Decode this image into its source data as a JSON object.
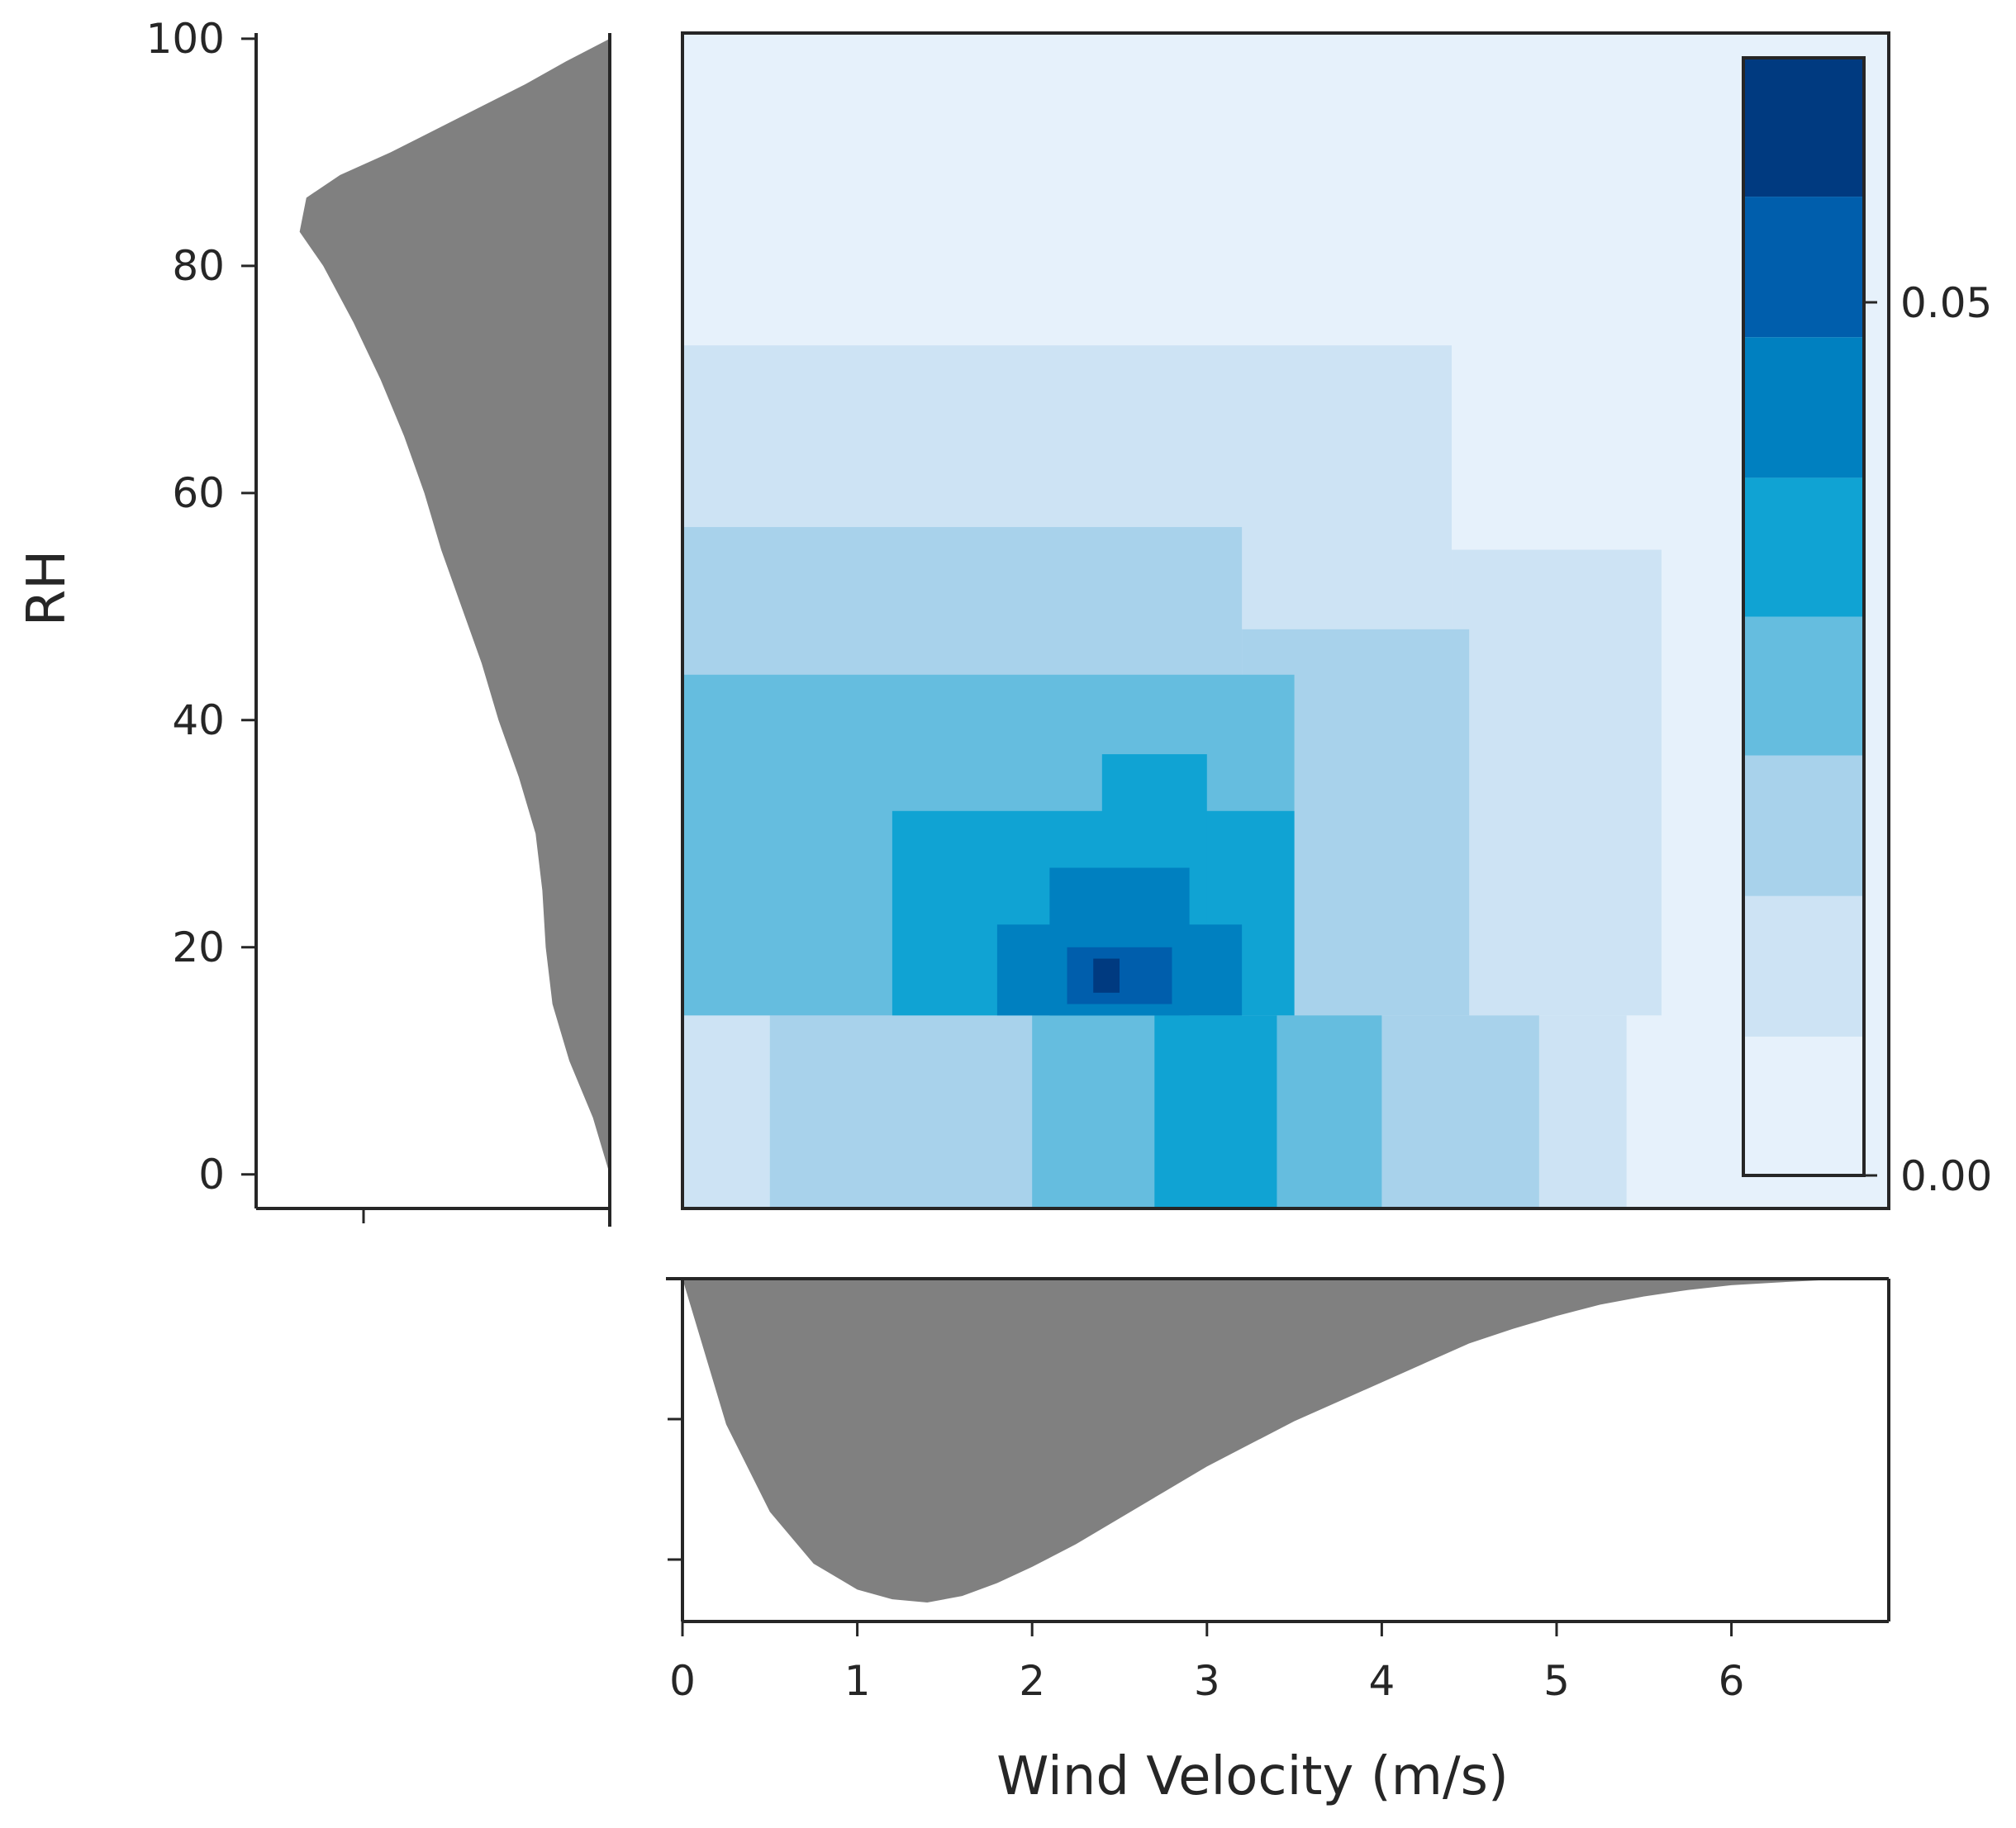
{
  "chart_data": {
    "type": "heatmap",
    "title": "",
    "xlabel": "Wind Velocity (m/s)",
    "ylabel": "RH",
    "xlim": [
      0,
      6.9
    ],
    "ylim": [
      -3,
      100.5
    ],
    "x_ticks": [
      "0",
      "1",
      "2",
      "3",
      "4",
      "5",
      "6"
    ],
    "y_ticks": [
      "0",
      "20",
      "40",
      "60",
      "80",
      "100"
    ],
    "colorbar": {
      "ticks": [
        "0.00",
        "0.05"
      ],
      "range": [
        0,
        0.066
      ],
      "levels": [
        0,
        0.0082,
        0.0165,
        0.0248,
        0.033,
        0.0412,
        0.0495,
        0.0578,
        0.066
      ],
      "colors": [
        "#e6f1fb",
        "#cde3f4",
        "#a8d2eb",
        "#65bddf",
        "#10a3d3",
        "#0080c0",
        "#005eac",
        "#003a80"
      ]
    },
    "density_regions": [
      {
        "level": 1,
        "x0": 0.0,
        "x1": 4.4,
        "y0": 14,
        "y1": 73
      },
      {
        "level": 1,
        "x0": 4.4,
        "x1": 5.6,
        "y0": 14,
        "y1": 55
      },
      {
        "level": 1,
        "x0": 0.0,
        "x1": 5.4,
        "y0": -3,
        "y1": 14
      },
      {
        "level": 2,
        "x0": 0.0,
        "x1": 3.2,
        "y0": 14,
        "y1": 57
      },
      {
        "level": 2,
        "x0": 3.2,
        "x1": 4.5,
        "y0": 14,
        "y1": 48
      },
      {
        "level": 2,
        "x0": 0.5,
        "x1": 4.9,
        "y0": -3,
        "y1": 14
      },
      {
        "level": 3,
        "x0": 0.0,
        "x1": 3.5,
        "y0": 14,
        "y1": 44
      },
      {
        "level": 3,
        "x0": 2.0,
        "x1": 4.0,
        "y0": -3,
        "y1": 14
      },
      {
        "level": 4,
        "x0": 1.2,
        "x1": 3.5,
        "y0": 14,
        "y1": 32
      },
      {
        "level": 4,
        "x0": 2.4,
        "x1": 3.0,
        "y0": 21,
        "y1": 37
      },
      {
        "level": 4,
        "x0": 2.7,
        "x1": 3.4,
        "y0": -3,
        "y1": 14
      },
      {
        "level": 5,
        "x0": 1.8,
        "x1": 3.2,
        "y0": 14,
        "y1": 22
      },
      {
        "level": 5,
        "x0": 2.1,
        "x1": 2.9,
        "y0": 14,
        "y1": 27
      },
      {
        "level": 6,
        "x0": 2.2,
        "x1": 2.8,
        "y0": 15,
        "y1": 20
      },
      {
        "level": 7,
        "x0": 2.35,
        "x1": 2.5,
        "y0": 16,
        "y1": 19
      }
    ],
    "marginal_x": {
      "color": "#808080",
      "x": [
        0,
        0.1,
        0.25,
        0.5,
        0.75,
        1.0,
        1.2,
        1.4,
        1.6,
        1.8,
        2.0,
        2.25,
        2.5,
        2.75,
        3.0,
        3.25,
        3.5,
        3.75,
        4.0,
        4.25,
        4.5,
        4.75,
        5.0,
        5.25,
        5.5,
        5.75,
        6.0,
        6.25,
        6.5,
        6.9
      ],
      "density": [
        0.0,
        0.18,
        0.45,
        0.72,
        0.88,
        0.96,
        0.99,
        1.0,
        0.98,
        0.94,
        0.89,
        0.82,
        0.74,
        0.66,
        0.58,
        0.51,
        0.44,
        0.38,
        0.32,
        0.26,
        0.2,
        0.155,
        0.115,
        0.08,
        0.055,
        0.035,
        0.02,
        0.012,
        0.005,
        0.0
      ]
    },
    "marginal_y": {
      "color": "#808080",
      "y": [
        0,
        5,
        10,
        15,
        20,
        25,
        30,
        35,
        40,
        45,
        50,
        55,
        60,
        65,
        70,
        75,
        80,
        83,
        86,
        88,
        90,
        93,
        96,
        98,
        100
      ],
      "density": [
        0.0,
        0.05,
        0.12,
        0.17,
        0.19,
        0.2,
        0.22,
        0.27,
        0.33,
        0.38,
        0.44,
        0.5,
        0.55,
        0.61,
        0.68,
        0.76,
        0.85,
        0.92,
        0.9,
        0.8,
        0.65,
        0.45,
        0.25,
        0.13,
        0.0
      ]
    }
  }
}
